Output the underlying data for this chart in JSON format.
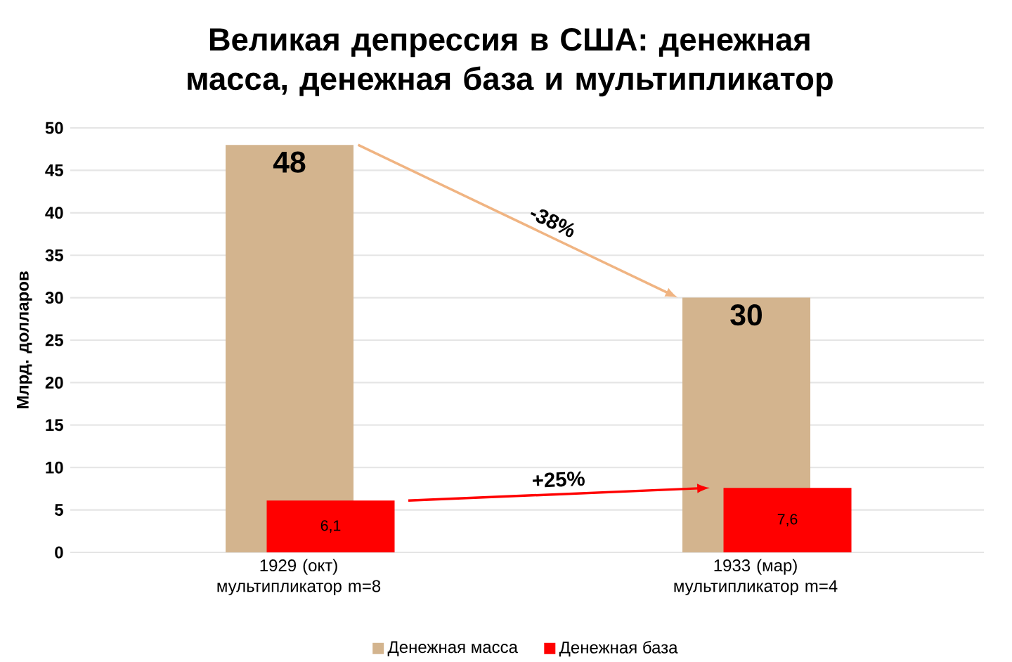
{
  "chart_data": {
    "type": "bar",
    "title": "Великая депрессия в США: денежная масса, денежная база и мультипликатор",
    "ylabel": "Млрд. долларов",
    "categories": [
      "1929 (окт) мультипликатор m=8",
      "1933 (мар) мультипликатор m=4"
    ],
    "series": [
      {
        "name": "Денежная масса",
        "color": "#d3b48e",
        "values": [
          48,
          30
        ],
        "value_labels": [
          "48",
          "30"
        ]
      },
      {
        "name": "Денежная база",
        "color": "#ff0000",
        "values": [
          6.1,
          7.6
        ],
        "value_labels": [
          "6,1",
          "7,6"
        ]
      }
    ],
    "ylim": [
      0,
      50
    ],
    "yticks": [
      0,
      5,
      10,
      15,
      20,
      25,
      30,
      35,
      40,
      45,
      50
    ],
    "grid": "y",
    "legend": "bottom",
    "annotations": [
      "-38%",
      "+25%"
    ]
  }
}
